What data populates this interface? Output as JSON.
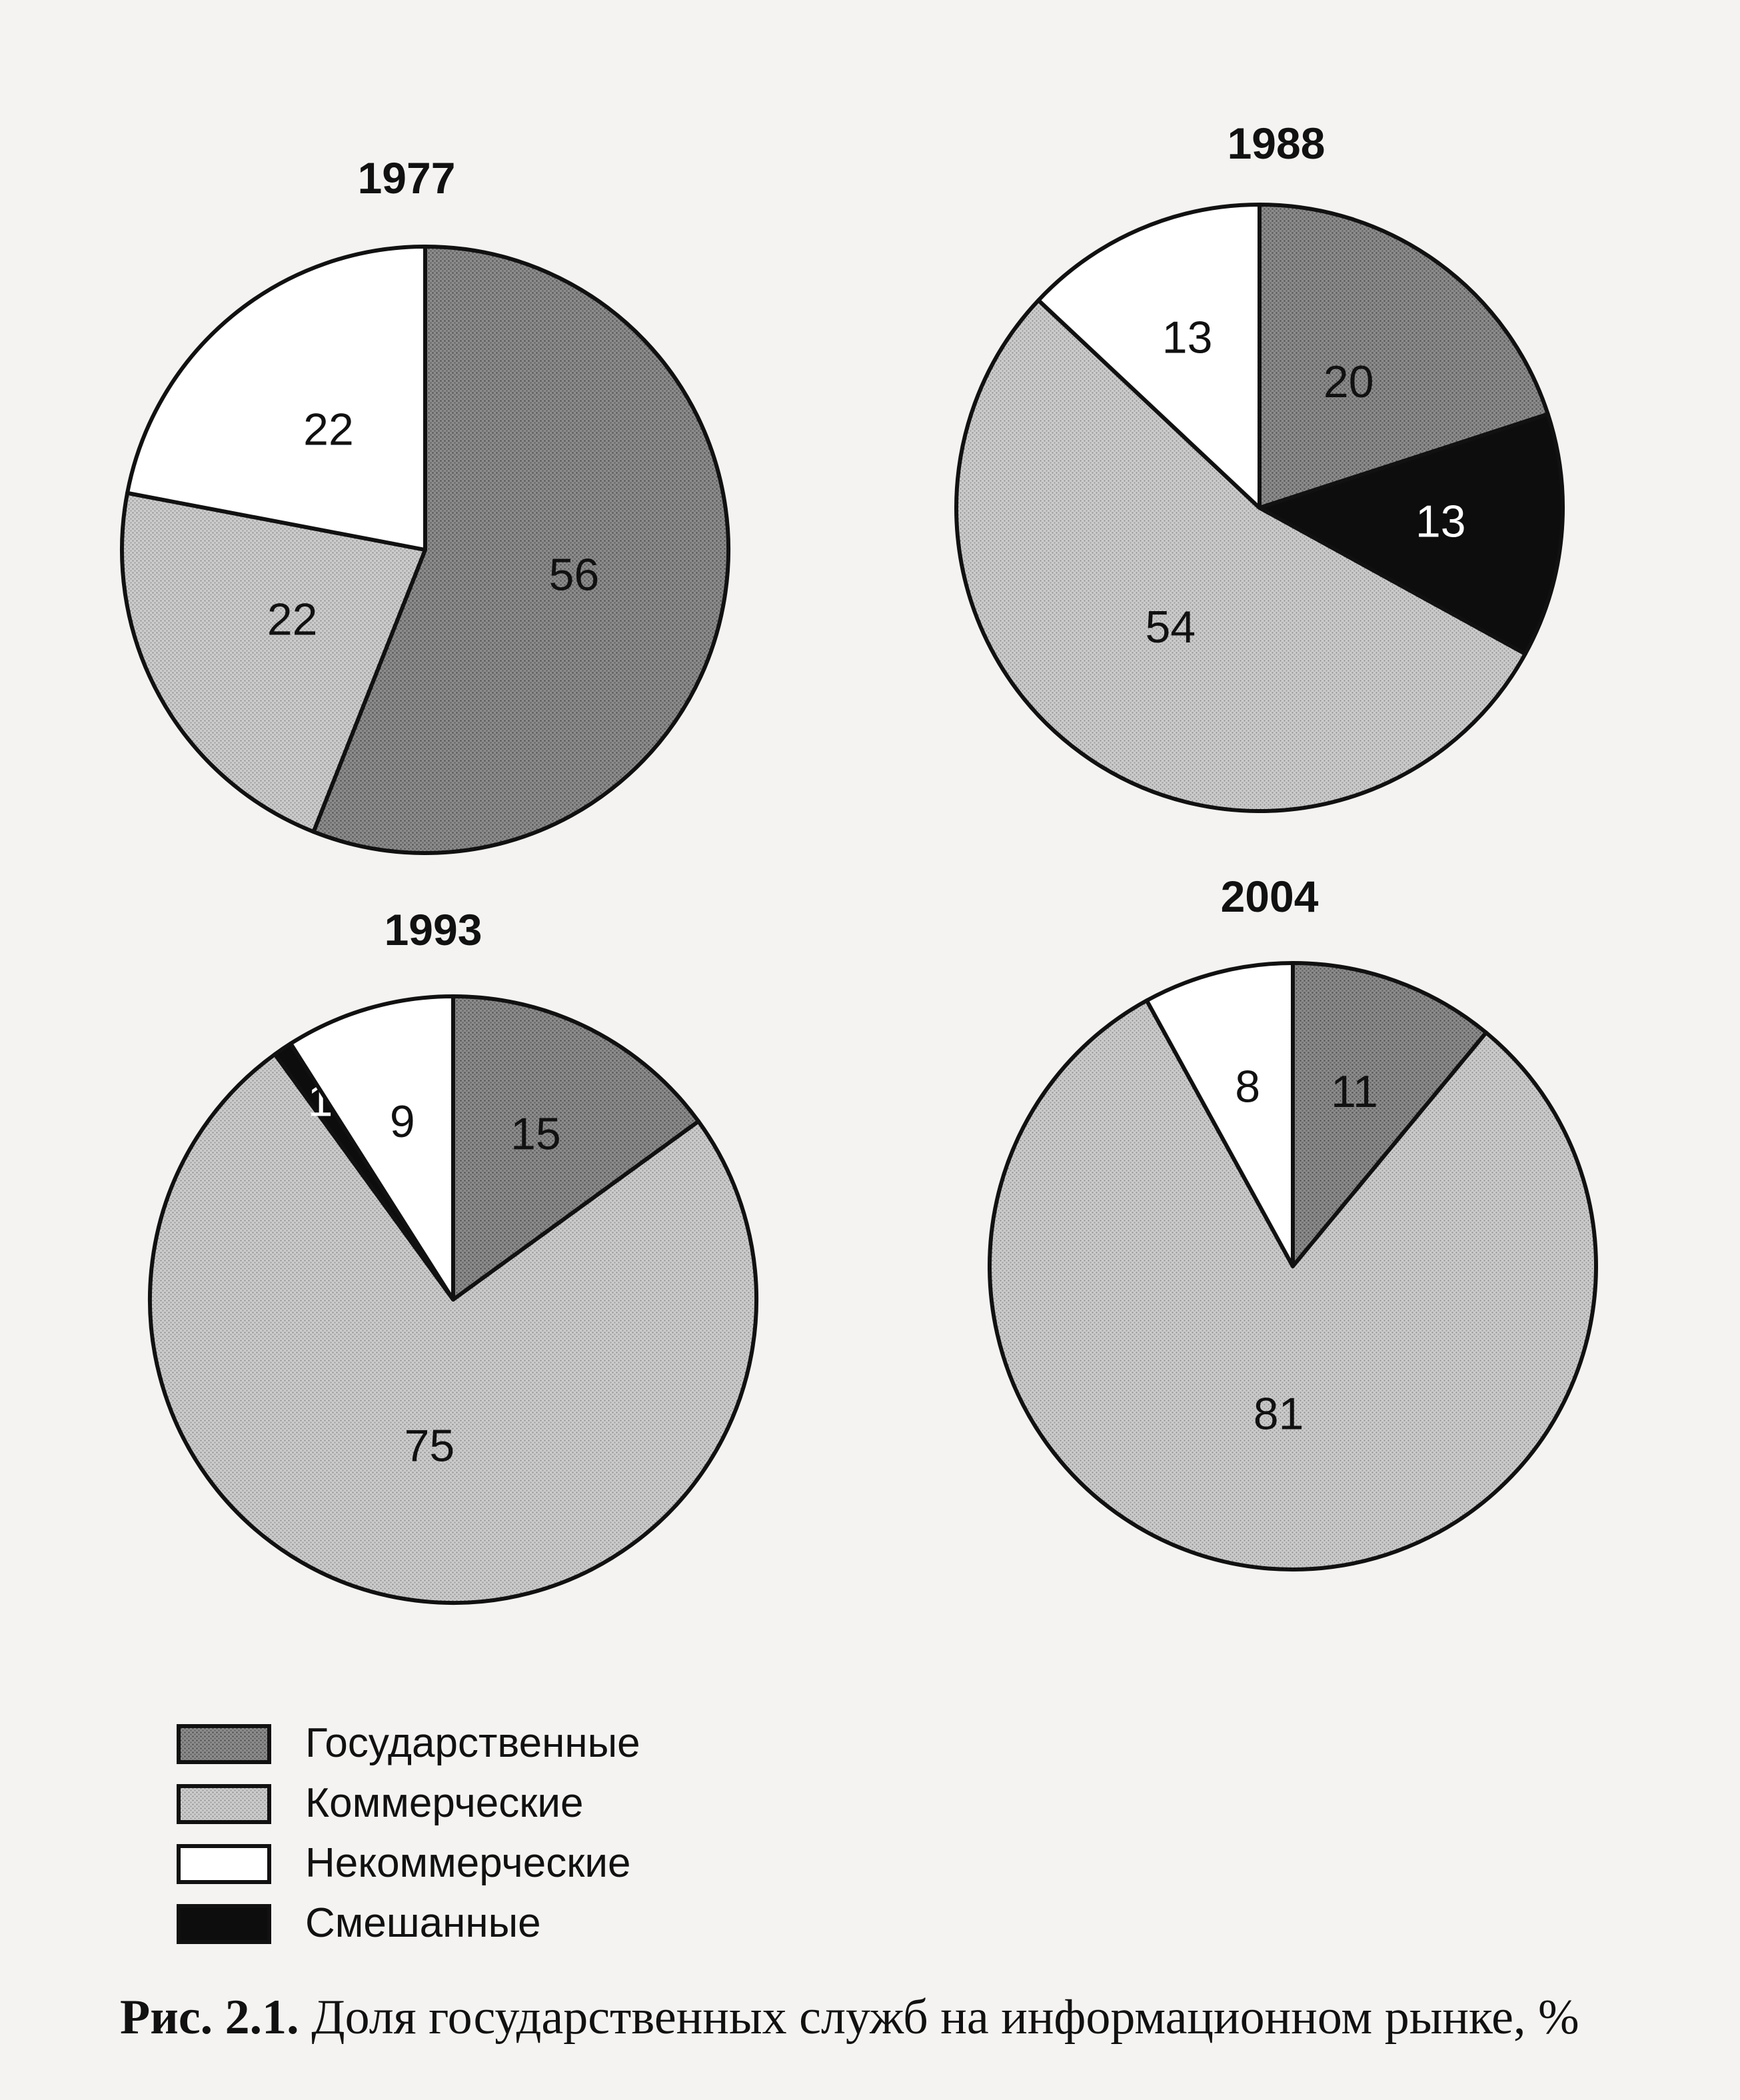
{
  "colors": {
    "Государственные": "#858585",
    "Коммерческие": "#c4c4c4",
    "Некоммерческие": "#ffffff",
    "Смешанные": "#0d0d0d",
    "outline": "#111111"
  },
  "chart_data": [
    {
      "type": "pie",
      "title": "1977",
      "slices": [
        {
          "category": "Государственные",
          "value": 56
        },
        {
          "category": "Коммерческие",
          "value": 22
        },
        {
          "category": "Некоммерческие",
          "value": 22
        }
      ]
    },
    {
      "type": "pie",
      "title": "1988",
      "slices": [
        {
          "category": "Государственные",
          "value": 20
        },
        {
          "category": "Смешанные",
          "value": 13
        },
        {
          "category": "Коммерческие",
          "value": 54
        },
        {
          "category": "Некоммерческие",
          "value": 13
        }
      ]
    },
    {
      "type": "pie",
      "title": "1993",
      "slices": [
        {
          "category": "Государственные",
          "value": 15
        },
        {
          "category": "Коммерческие",
          "value": 75
        },
        {
          "category": "Смешанные",
          "value": 1
        },
        {
          "category": "Некоммерческие",
          "value": 9
        }
      ]
    },
    {
      "type": "pie",
      "title": "2004",
      "slices": [
        {
          "category": "Государственные",
          "value": 11
        },
        {
          "category": "Коммерческие",
          "value": 81
        },
        {
          "category": "Некоммерческие",
          "value": 8
        }
      ]
    }
  ],
  "legend": [
    {
      "category": "Государственные",
      "label": "Государственные"
    },
    {
      "category": "Коммерческие",
      "label": "Коммерческие"
    },
    {
      "category": "Некоммерческие",
      "label": "Некоммерческие"
    },
    {
      "category": "Смешанные",
      "label": "Смешанные"
    }
  ],
  "caption": {
    "prefix": "Рис. 2.1.",
    "text": " Доля государственных служб на информационном рынке, %"
  }
}
